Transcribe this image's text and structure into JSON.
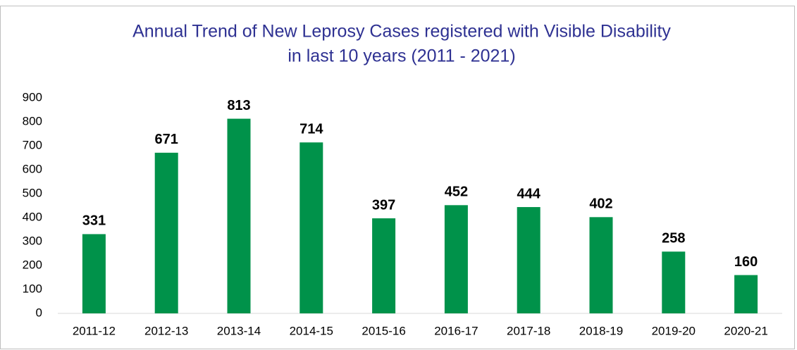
{
  "chart_data": {
    "type": "bar",
    "title": [
      "Annual Trend of New Leprosy Cases registered with Visible Disability",
      "in last 10 years (2011 - 2021)"
    ],
    "categories": [
      "2011-12",
      "2012-13",
      "2013-14",
      "2014-15",
      "2015-16",
      "2016-17",
      "2017-18",
      "2018-19",
      "2019-20",
      "2020-21"
    ],
    "values": [
      331,
      671,
      813,
      714,
      397,
      452,
      444,
      402,
      258,
      160
    ],
    "color": "#00924a",
    "ylim": [
      0,
      900
    ],
    "yticks": [
      0,
      100,
      200,
      300,
      400,
      500,
      600,
      700,
      800,
      900
    ],
    "grid": false
  }
}
